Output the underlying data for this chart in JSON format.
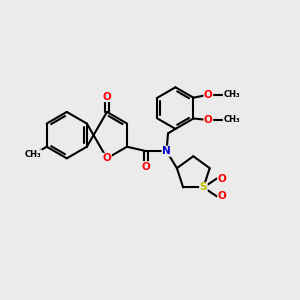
{
  "bg_color": "#ebebeb",
  "bond_color": "#000000",
  "bond_lw": 1.5,
  "atom_colors": {
    "O": "#ff0000",
    "N": "#0000cc",
    "S": "#bbbb00",
    "C": "#000000"
  },
  "font_size": 7.5,
  "fig_size": [
    3.0,
    3.0
  ],
  "dpi": 100,
  "xlim": [
    0,
    10
  ],
  "ylim": [
    0,
    10
  ]
}
